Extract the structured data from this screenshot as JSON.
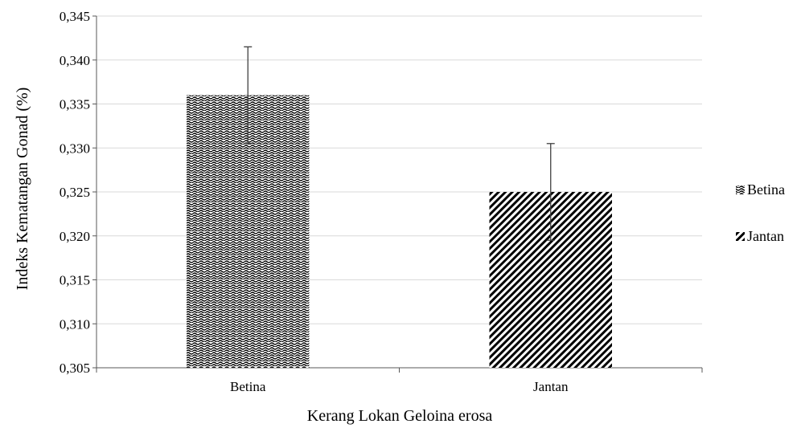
{
  "chart_data": {
    "type": "bar",
    "categories": [
      "Betina",
      "Jantan"
    ],
    "series": [
      {
        "name": "Betina",
        "category": "Betina",
        "value": 0.336,
        "error": 0.0055,
        "pattern": "wave"
      },
      {
        "name": "Jantan",
        "category": "Jantan",
        "value": 0.325,
        "error": 0.0055,
        "pattern": "diagonal"
      }
    ],
    "xlabel": "Kerang Lokan Geloina erosa",
    "ylabel": "Indeks Kematangan Gonad (%)",
    "ylim": [
      0.305,
      0.345
    ],
    "yticks": [
      0.305,
      0.31,
      0.315,
      0.32,
      0.325,
      0.33,
      0.335,
      0.34,
      0.345
    ],
    "ytick_labels": [
      "0,305",
      "0,310",
      "0,315",
      "0,320",
      "0,325",
      "0,330",
      "0,335",
      "0,340",
      "0,345"
    ],
    "grid": true,
    "legend_position": "right",
    "colors": {
      "bar": "#000000",
      "grid": "#d9d9d9",
      "axis": "#595959",
      "error_bar": "#404040"
    }
  }
}
